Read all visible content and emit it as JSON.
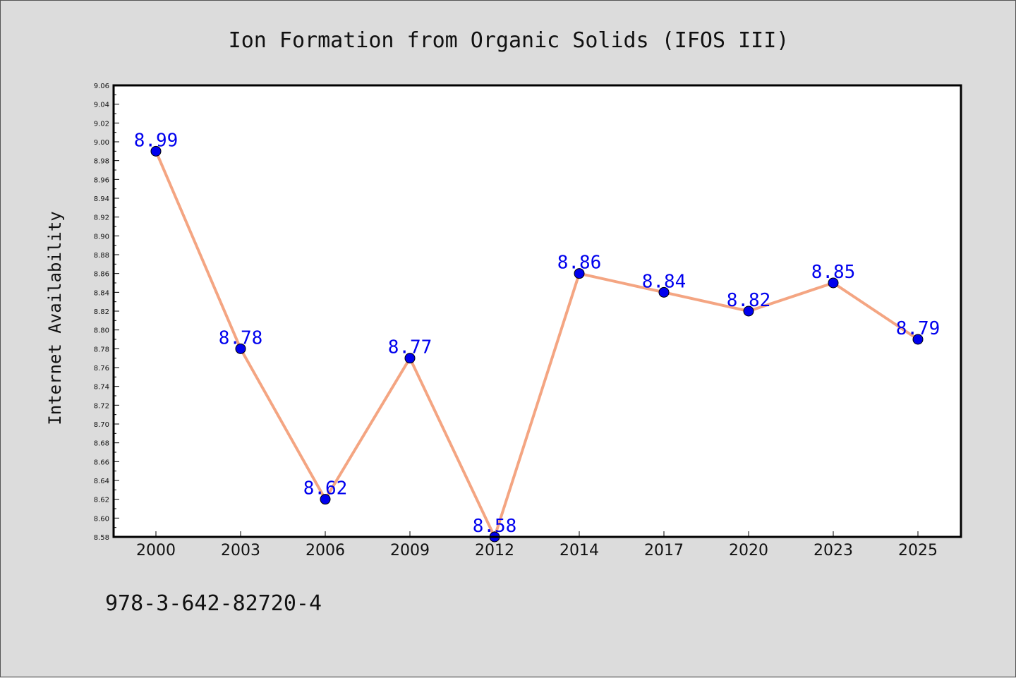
{
  "chart_data": {
    "type": "line",
    "title": "Ion Formation from Organic Solids (IFOS III)",
    "xlabel": "",
    "ylabel": "Internet Availability",
    "categories": [
      "2000",
      "2003",
      "2006",
      "2009",
      "2012",
      "2014",
      "2017",
      "2020",
      "2023",
      "2025"
    ],
    "series": [
      {
        "values": [
          8.99,
          8.78,
          8.62,
          8.77,
          8.58,
          8.86,
          8.84,
          8.82,
          8.85,
          8.79
        ]
      }
    ],
    "data_labels": [
      "8.99",
      "8.78",
      "8.62",
      "8.77",
      "8.58",
      "8.86",
      "8.84",
      "8.82",
      "8.85",
      "8.79"
    ],
    "ylim": [
      8.58,
      9.06
    ],
    "y_ticks": [
      "8.58",
      "8.60",
      "8.62",
      "8.64",
      "8.66",
      "8.68",
      "8.70",
      "8.72",
      "8.74",
      "8.76",
      "8.78",
      "8.80",
      "8.82",
      "8.84",
      "8.86",
      "8.88",
      "8.90",
      "8.92",
      "8.94",
      "8.96",
      "8.98",
      "9.00",
      "9.02",
      "9.04",
      "9.06"
    ],
    "grid": false,
    "legend": "none",
    "colors": {
      "line": "#f4a582",
      "marker": "#0000ee",
      "marker_edge": "#000000",
      "data_label": "#0000ee",
      "plot_background": "#ffffff",
      "figure_background": "#dcdcdc"
    }
  },
  "footer": {
    "isbn": "978-3-642-82720-4"
  }
}
